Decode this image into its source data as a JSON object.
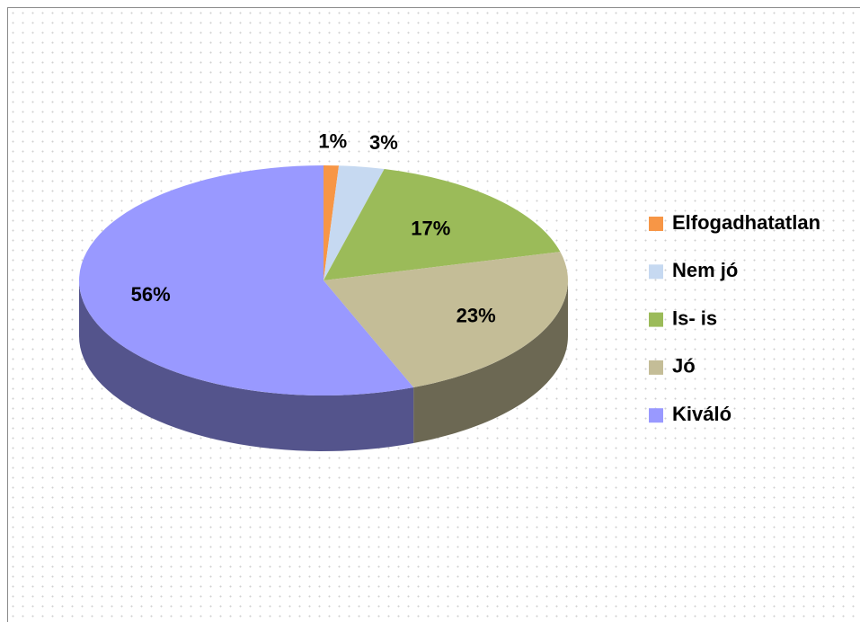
{
  "chart_data": {
    "type": "pie",
    "categories": [
      "Elfogadhatatlan",
      "Nem jó",
      "Is- is",
      "Jó",
      "Kiváló"
    ],
    "values": [
      1,
      3,
      17,
      23,
      56
    ],
    "value_labels": [
      "1%",
      "3%",
      "17%",
      "23%",
      "56%"
    ],
    "colors": [
      "#f79646",
      "#c6d9f1",
      "#9bbb59",
      "#c4bd97",
      "#9999ff"
    ],
    "legend": "right"
  }
}
